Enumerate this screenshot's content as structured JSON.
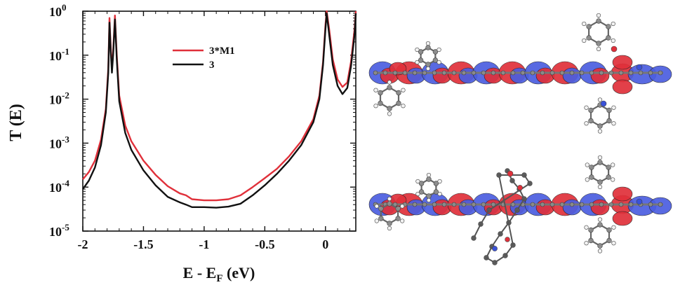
{
  "chart_data": {
    "type": "line",
    "title": "",
    "xlabel": {
      "main": "E - E",
      "sub": "F",
      "unit": " (eV)"
    },
    "ylabel": "T (E)",
    "xlim": [
      -2.0,
      0.25
    ],
    "ylim": [
      1e-05,
      1
    ],
    "yscale": "log",
    "grid": false,
    "legend_position": "top-center",
    "x_ticks": [
      "-2",
      "-1.5",
      "-1",
      "-0.5",
      "0"
    ],
    "y_ticks": [
      {
        "base": "10",
        "exp": "-5"
      },
      {
        "base": "10",
        "exp": "-4"
      },
      {
        "base": "10",
        "exp": "-3"
      },
      {
        "base": "10",
        "exp": "-2"
      },
      {
        "base": "10",
        "exp": "-1"
      },
      {
        "base": "10",
        "exp": "0"
      }
    ],
    "series": [
      {
        "name": "3*M1",
        "color": "#e0303a",
        "points": [
          [
            -2.0,
            0.00015
          ],
          [
            -1.95,
            0.00022
          ],
          [
            -1.9,
            0.0004
          ],
          [
            -1.85,
            0.0012
          ],
          [
            -1.81,
            0.006
          ],
          [
            -1.79,
            0.05
          ],
          [
            -1.78,
            0.7
          ],
          [
            -1.77,
            0.15
          ],
          [
            -1.76,
            0.05
          ],
          [
            -1.75,
            0.12
          ],
          [
            -1.735,
            0.8
          ],
          [
            -1.72,
            0.1
          ],
          [
            -1.7,
            0.012
          ],
          [
            -1.65,
            0.0025
          ],
          [
            -1.6,
            0.0011
          ],
          [
            -1.5,
            0.0004
          ],
          [
            -1.4,
            0.00019
          ],
          [
            -1.3,
            0.000105
          ],
          [
            -1.2,
            7.2e-05
          ],
          [
            -1.15,
            6.5e-05
          ],
          [
            -1.1,
            5.3e-05
          ],
          [
            -1.0,
            5e-05
          ],
          [
            -0.9,
            5e-05
          ],
          [
            -0.8,
            5.3e-05
          ],
          [
            -0.7,
            6.5e-05
          ],
          [
            -0.6,
            0.0001
          ],
          [
            -0.5,
            0.00016
          ],
          [
            -0.4,
            0.00026
          ],
          [
            -0.3,
            0.0005
          ],
          [
            -0.2,
            0.0011
          ],
          [
            -0.1,
            0.0035
          ],
          [
            -0.05,
            0.012
          ],
          [
            -0.02,
            0.07
          ],
          [
            0.0,
            0.5
          ],
          [
            0.01,
            1.0
          ],
          [
            0.03,
            0.4
          ],
          [
            0.06,
            0.08
          ],
          [
            0.1,
            0.028
          ],
          [
            0.14,
            0.019
          ],
          [
            0.18,
            0.024
          ],
          [
            0.21,
            0.07
          ],
          [
            0.24,
            0.4
          ],
          [
            0.25,
            1.0
          ]
        ]
      },
      {
        "name": "3",
        "color": "#111111",
        "points": [
          [
            -2.0,
            9e-05
          ],
          [
            -1.95,
            0.00014
          ],
          [
            -1.9,
            0.00028
          ],
          [
            -1.85,
            0.0009
          ],
          [
            -1.81,
            0.005
          ],
          [
            -1.79,
            0.04
          ],
          [
            -1.78,
            0.55
          ],
          [
            -1.77,
            0.12
          ],
          [
            -1.76,
            0.04
          ],
          [
            -1.75,
            0.1
          ],
          [
            -1.735,
            0.65
          ],
          [
            -1.72,
            0.08
          ],
          [
            -1.7,
            0.009
          ],
          [
            -1.65,
            0.0017
          ],
          [
            -1.6,
            0.0007
          ],
          [
            -1.5,
            0.00024
          ],
          [
            -1.4,
            0.00011
          ],
          [
            -1.3,
            6e-05
          ],
          [
            -1.2,
            4.5e-05
          ],
          [
            -1.15,
            4e-05
          ],
          [
            -1.1,
            3.5e-05
          ],
          [
            -1.0,
            3.5e-05
          ],
          [
            -0.9,
            3.4e-05
          ],
          [
            -0.8,
            3.6e-05
          ],
          [
            -0.7,
            4.2e-05
          ],
          [
            -0.6,
            6.5e-05
          ],
          [
            -0.5,
            0.00011
          ],
          [
            -0.4,
            0.0002
          ],
          [
            -0.3,
            0.0004
          ],
          [
            -0.2,
            0.0009
          ],
          [
            -0.1,
            0.003
          ],
          [
            -0.05,
            0.01
          ],
          [
            -0.02,
            0.06
          ],
          [
            0.0,
            0.4
          ],
          [
            0.01,
            0.9
          ],
          [
            0.03,
            0.3
          ],
          [
            0.06,
            0.06
          ],
          [
            0.1,
            0.02
          ],
          [
            0.14,
            0.013
          ],
          [
            0.18,
            0.018
          ],
          [
            0.21,
            0.055
          ],
          [
            0.24,
            0.3
          ],
          [
            0.25,
            0.9
          ]
        ]
      }
    ]
  },
  "colors": {
    "orbital_red": "#e0303a",
    "orbital_blue": "#4b5ee0",
    "atom_gray": "#8a8a8a",
    "atom_white": "#f2f2f2",
    "nitrogen_blue": "#3a52d8"
  }
}
